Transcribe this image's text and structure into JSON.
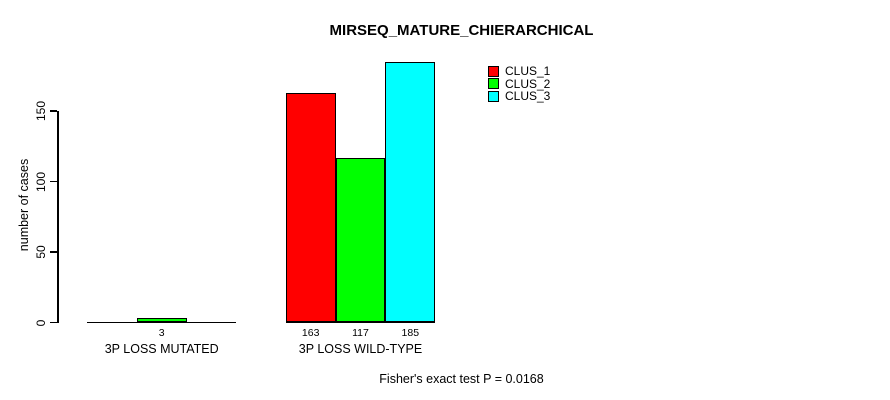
{
  "title": "MIRSEQ_MATURE_CHIERARCHICAL",
  "y_axis": {
    "label": "number of cases"
  },
  "footer": "Fisher's exact test P = 0.0168",
  "legend": {
    "items": [
      {
        "label": "CLUS_1",
        "color": "#FF0000"
      },
      {
        "label": "CLUS_2",
        "color": "#00FF00"
      },
      {
        "label": "CLUS_3",
        "color": "#00FFFF"
      }
    ]
  },
  "chart_data": {
    "type": "bar",
    "title": "MIRSEQ_MATURE_CHIERARCHICAL",
    "categories": [
      "3P LOSS MUTATED",
      "3P LOSS WILD-TYPE"
    ],
    "series": [
      {
        "name": "CLUS_1",
        "color": "#FF0000",
        "values": [
          0,
          163
        ]
      },
      {
        "name": "CLUS_2",
        "color": "#00FF00",
        "values": [
          3,
          117
        ]
      },
      {
        "name": "CLUS_3",
        "color": "#00FFFF",
        "values": [
          0,
          185
        ]
      }
    ],
    "bar_value_labels_shown_for_nonzero": true,
    "xlabel": "",
    "ylabel": "number of cases",
    "yticks": [
      0,
      50,
      100,
      150
    ],
    "ylim": [
      0,
      190
    ],
    "grid": false,
    "legend_position": "top-right-inside",
    "annotation": "Fisher's exact test P = 0.0168"
  }
}
